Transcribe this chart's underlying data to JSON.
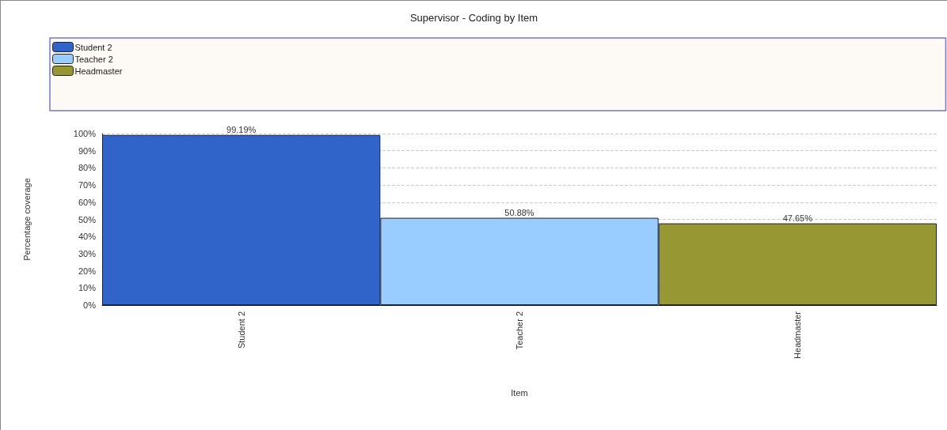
{
  "chart_data": {
    "type": "bar",
    "title": "Supervisor - Coding by Item",
    "xlabel": "Item",
    "ylabel": "Percentage coverage",
    "categories": [
      "Student 2",
      "Teacher 2",
      "Headmaster"
    ],
    "series": [
      {
        "name": "Student 2",
        "color": "#3164c9",
        "values": [
          99.19,
          null,
          null
        ],
        "value_labels": [
          "99.19%",
          null,
          null
        ]
      },
      {
        "name": "Teacher 2",
        "color": "#99ccff",
        "values": [
          null,
          50.88,
          null
        ],
        "value_labels": [
          null,
          "50.88%",
          null
        ]
      },
      {
        "name": "Headmaster",
        "color": "#979734",
        "values": [
          null,
          null,
          47.65
        ],
        "value_labels": [
          null,
          null,
          "47.65%"
        ]
      }
    ],
    "ylim": [
      0,
      100
    ],
    "yticks": [
      {
        "value": 0,
        "label": "0%"
      },
      {
        "value": 10,
        "label": "10%"
      },
      {
        "value": 20,
        "label": "20%"
      },
      {
        "value": 30,
        "label": "30%"
      },
      {
        "value": 40,
        "label": "40%"
      },
      {
        "value": 50,
        "label": "50%"
      },
      {
        "value": 60,
        "label": "60%"
      },
      {
        "value": 70,
        "label": "70%"
      },
      {
        "value": 80,
        "label": "80%"
      },
      {
        "value": 90,
        "label": "90%"
      },
      {
        "value": 100,
        "label": "100%"
      }
    ],
    "grid": "y",
    "legend": "top"
  }
}
